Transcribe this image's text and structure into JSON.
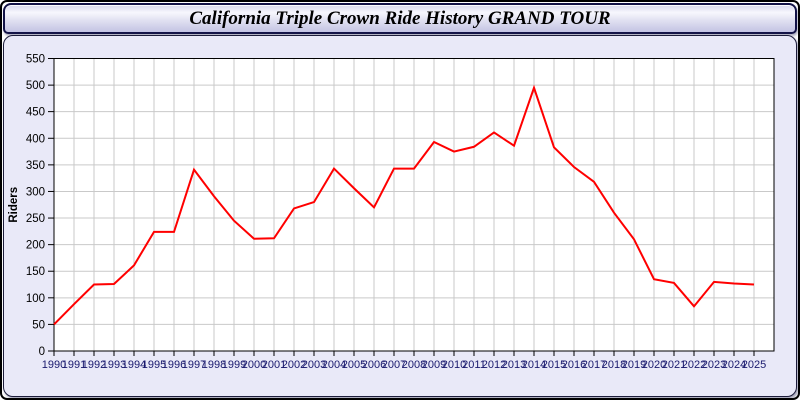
{
  "window": {
    "title": "California Triple Crown Ride History GRAND TOUR"
  },
  "chart_data": {
    "type": "line",
    "title": "California Triple Crown Ride History GRAND TOUR",
    "xlabel": "",
    "ylabel": "Riders",
    "x": [
      1990,
      1991,
      1992,
      1993,
      1994,
      1995,
      1996,
      1997,
      1998,
      1999,
      2000,
      2001,
      2002,
      2003,
      2004,
      2005,
      2006,
      2007,
      2008,
      2009,
      2010,
      2011,
      2012,
      2013,
      2014,
      2015,
      2016,
      2017,
      2018,
      2019,
      2020,
      2021,
      2022,
      2023,
      2024,
      2025
    ],
    "series": [
      {
        "name": "Riders",
        "values": [
          50,
          88,
          125,
          126,
          161,
          224,
          224,
          341,
          291,
          245,
          211,
          212,
          268,
          280,
          343,
          306,
          270,
          343,
          343,
          393,
          375,
          384,
          411,
          386,
          495,
          383,
          346,
          318,
          260,
          210,
          135,
          128,
          84,
          130,
          127,
          125
        ]
      }
    ],
    "ylim": [
      0,
      550
    ],
    "yticks": [
      0,
      50,
      100,
      150,
      200,
      250,
      300,
      350,
      400,
      450,
      500,
      550
    ],
    "grid": true,
    "legend_position": "none",
    "colors": {
      "line": "#ff0000",
      "grid": "#c9c9c9",
      "plot_background": "#ffffff",
      "panel_background": "#e9e9f8",
      "axis": "#000000",
      "y_tick_label": "#000000",
      "x_tick_label": "#1a1a6e"
    }
  }
}
